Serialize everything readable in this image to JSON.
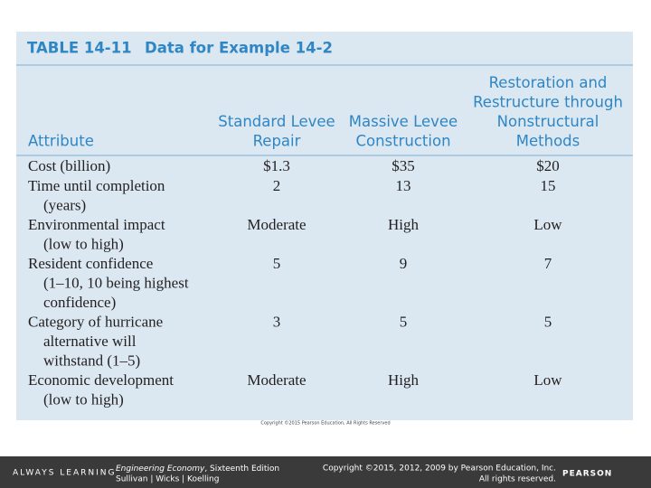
{
  "header": {
    "label": "TABLE 14-11",
    "title": "Data for Example 14-2"
  },
  "table": {
    "columns": [
      [
        "Attribute"
      ],
      [
        "Standard Levee",
        "Repair"
      ],
      [
        "Massive Levee",
        "Construction"
      ],
      [
        "Restoration and",
        "Restructure through",
        "Nonstructural",
        "Methods"
      ]
    ],
    "rows": [
      [
        [
          "Cost (billion)"
        ],
        "$1.3",
        "$35",
        "$20"
      ],
      [
        [
          "Time until completion",
          "(years)"
        ],
        "2",
        "13",
        "15"
      ],
      [
        [
          "Environmental impact",
          "(low to high)"
        ],
        "Moderate",
        "High",
        "Low"
      ],
      [
        [
          "Resident confidence",
          "(1–10, 10 being highest",
          "confidence)"
        ],
        "5",
        "9",
        "7"
      ],
      [
        [
          "Category of hurricane",
          "alternative will",
          "withstand (1–5)"
        ],
        "3",
        "5",
        "5"
      ],
      [
        [
          "Economic development",
          "(low to high)"
        ],
        "Moderate",
        "High",
        "Low"
      ]
    ]
  },
  "table_copyright": "Copyright ©2015 Pearson Education, All Rights Reserved",
  "footer": {
    "brand_tagline": "ALWAYS LEARNING",
    "book_title": "Engineering Economy",
    "book_edition": ", Sixteenth Edition",
    "authors": "Sullivan | Wicks | Koelling",
    "copyright_line1": "Copyright ©2015, 2012, 2009 by Pearson Education, Inc.",
    "copyright_line2": "All rights reserved.",
    "publisher": "PEARSON"
  }
}
